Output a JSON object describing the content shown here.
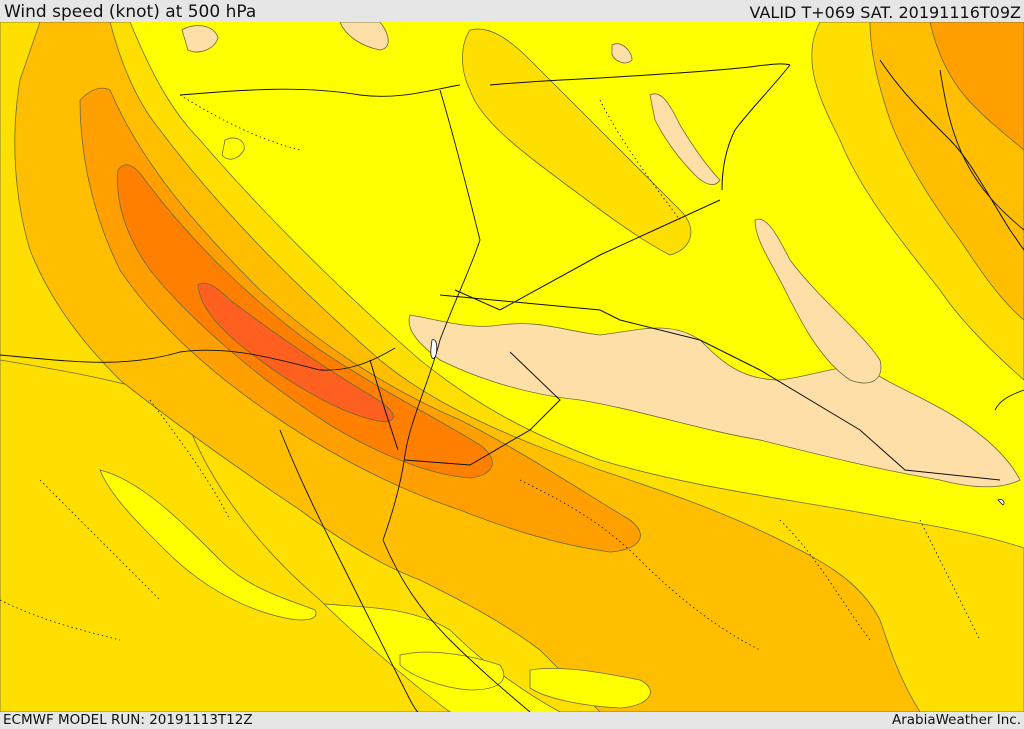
{
  "header": {
    "title": "Wind speed (knot) at 500 hPa",
    "valid": "VALID T+069 SAT. 20191116T09Z"
  },
  "footer": {
    "model_run": "ECMWF MODEL RUN: 20191113T12Z",
    "credit": "ArabiaWeather Inc."
  },
  "map": {
    "field": "wind-speed-500hpa",
    "fill_colors": {
      "lowest": "#ffdfa8",
      "low": "#ffff00",
      "moderate": "#ffdf00",
      "elevated": "#ffbf00",
      "high": "#ff9f00",
      "very_high": "#ff7f00",
      "max": "#ff5f1f"
    }
  }
}
